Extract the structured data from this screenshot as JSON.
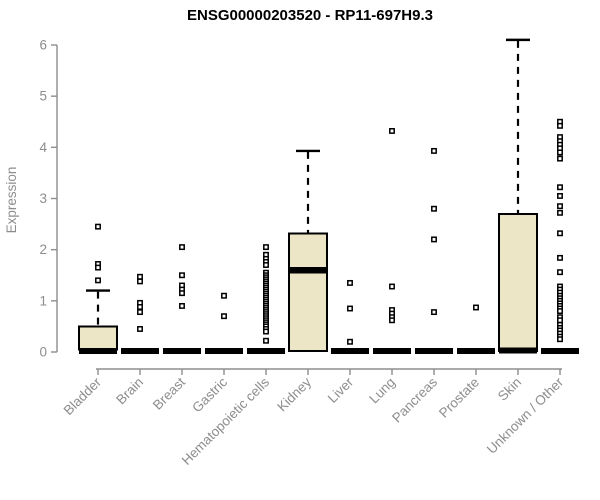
{
  "title": "ENSG00000203520 - RP11-697H9.3",
  "chart_data": {
    "type": "boxplot",
    "title": "ENSG00000203520 - RP11-697H9.3",
    "xlabel": "",
    "ylabel": "Expression",
    "ylim": [
      0,
      6
    ],
    "yticks": [
      0,
      1,
      2,
      3,
      4,
      5,
      6
    ],
    "grid": false,
    "legend": "none",
    "colors": {
      "box_fill": "#ece6c6",
      "box_border": "#000000",
      "median": "#000000",
      "whisker": "#000000",
      "outlier": "#000000",
      "axis": "#8d8d8d",
      "title": "#000000",
      "background": "#ffffff"
    },
    "categories": [
      "Bladder",
      "Brain",
      "Breast",
      "Gastric",
      "Hematopoietic cells",
      "Kidney",
      "Liver",
      "Lung",
      "Pancreas",
      "Prostate",
      "Skin",
      "Unknown / Other"
    ],
    "series": [
      {
        "category": "Bladder",
        "q1": 0.05,
        "median": 0.02,
        "q3": 0.5,
        "whisker_low": 0,
        "whisker_high": 1.2,
        "outliers": [
          2.45,
          1.72,
          1.65,
          1.4
        ]
      },
      {
        "category": "Brain",
        "q1": 0,
        "median": 0.02,
        "q3": 0,
        "whisker_low": 0,
        "whisker_high": 0,
        "outliers": [
          1.47,
          1.38,
          0.96,
          0.88,
          0.78,
          0.45
        ]
      },
      {
        "category": "Breast",
        "q1": 0,
        "median": 0.02,
        "q3": 0,
        "whisker_low": 0,
        "whisker_high": 0,
        "outliers": [
          2.05,
          1.5,
          1.3,
          1.22,
          1.15,
          0.9
        ]
      },
      {
        "category": "Gastric",
        "q1": 0,
        "median": 0.02,
        "q3": 0,
        "whisker_low": 0,
        "whisker_high": 0,
        "outliers": [
          1.1,
          0.7
        ]
      },
      {
        "category": "Hematopoietic cells",
        "q1": 0,
        "median": 0.02,
        "q3": 0,
        "whisker_low": 0,
        "whisker_high": 0,
        "outliers": [
          2.05,
          1.9,
          1.82,
          1.76,
          1.7,
          1.55,
          1.5,
          1.46,
          1.42,
          1.38,
          1.34,
          1.3,
          1.26,
          1.22,
          1.18,
          1.14,
          1.1,
          1.06,
          1.02,
          0.98,
          0.94,
          0.9,
          0.86,
          0.82,
          0.78,
          0.74,
          0.7,
          0.66,
          0.62,
          0.58,
          0.54,
          0.5,
          0.45,
          0.4,
          0.22
        ]
      },
      {
        "category": "Kidney",
        "q1": 0.02,
        "median": 1.6,
        "q3": 2.32,
        "whisker_low": 0,
        "whisker_high": 3.93,
        "outliers": []
      },
      {
        "category": "Liver",
        "q1": 0,
        "median": 0.02,
        "q3": 0,
        "whisker_low": 0,
        "whisker_high": 0,
        "outliers": [
          1.35,
          0.85,
          0.2
        ]
      },
      {
        "category": "Lung",
        "q1": 0,
        "median": 0.02,
        "q3": 0,
        "whisker_low": 0,
        "whisker_high": 0,
        "outliers": [
          4.32,
          1.28,
          0.82,
          0.75,
          0.68,
          0.62
        ]
      },
      {
        "category": "Pancreas",
        "q1": 0,
        "median": 0.02,
        "q3": 0,
        "whisker_low": 0,
        "whisker_high": 0,
        "outliers": [
          3.93,
          2.8,
          2.2,
          0.78
        ]
      },
      {
        "category": "Prostate",
        "q1": 0,
        "median": 0.02,
        "q3": 0,
        "whisker_low": 0,
        "whisker_high": 0,
        "outliers": [
          0.87
        ]
      },
      {
        "category": "Skin",
        "q1": 0.02,
        "median": 0.03,
        "q3": 2.7,
        "whisker_low": 0,
        "whisker_high": 6.1,
        "outliers": []
      },
      {
        "category": "Unknown / Other",
        "q1": 0,
        "median": 0.02,
        "q3": 0,
        "whisker_low": 0,
        "whisker_high": 0,
        "outliers": [
          4.5,
          4.42,
          4.2,
          4.12,
          4.05,
          3.98,
          3.9,
          3.78,
          3.22,
          3.05,
          2.85,
          2.72,
          2.32,
          1.84,
          1.56,
          1.28,
          1.22,
          1.16,
          1.1,
          1.05,
          1.0,
          0.95,
          0.9,
          0.85,
          0.8,
          0.68,
          0.62,
          0.53,
          0.47,
          0.42,
          0.36,
          0.3,
          0.25
        ]
      }
    ]
  }
}
